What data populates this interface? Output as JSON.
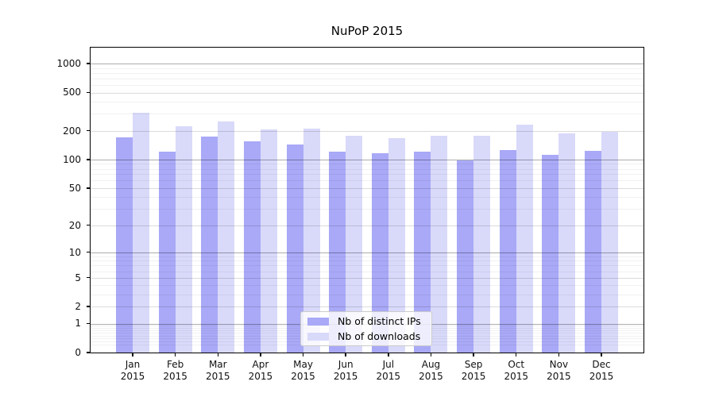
{
  "title": "NuPoP 2015",
  "chart_data": {
    "type": "bar",
    "title": "NuPoP 2015",
    "categories": [
      "Jan",
      "Feb",
      "Mar",
      "Apr",
      "May",
      "Jun",
      "Jul",
      "Aug",
      "Sep",
      "Oct",
      "Nov",
      "Dec"
    ],
    "x_year_label": "2015",
    "series": [
      {
        "name": "Nb of distinct IPs",
        "color": "#a9a9f7",
        "values": [
          170,
          120,
          175,
          155,
          143,
          121,
          116,
          122,
          97,
          125,
          112,
          123
        ]
      },
      {
        "name": "Nb of downloads",
        "color": "#d9d9fa",
        "values": [
          310,
          222,
          250,
          208,
          212,
          178,
          168,
          178,
          178,
          230,
          186,
          195
        ]
      }
    ],
    "y_axis": {
      "scale": "log10(value+1)",
      "ticks": [
        1000,
        500,
        200,
        100,
        50,
        20,
        10,
        5,
        2,
        1,
        0
      ],
      "tick_labels": [
        "1000",
        "500",
        "200",
        "100",
        "50",
        "20",
        "10",
        "5",
        "2",
        "1",
        "0"
      ],
      "top_value": 1465
    },
    "legend": {
      "position": "bottom-center",
      "entries": [
        "Nb of distinct IPs",
        "Nb of downloads"
      ]
    },
    "grid": true,
    "background_color": "#ffffff",
    "frame_color": "#000000"
  }
}
